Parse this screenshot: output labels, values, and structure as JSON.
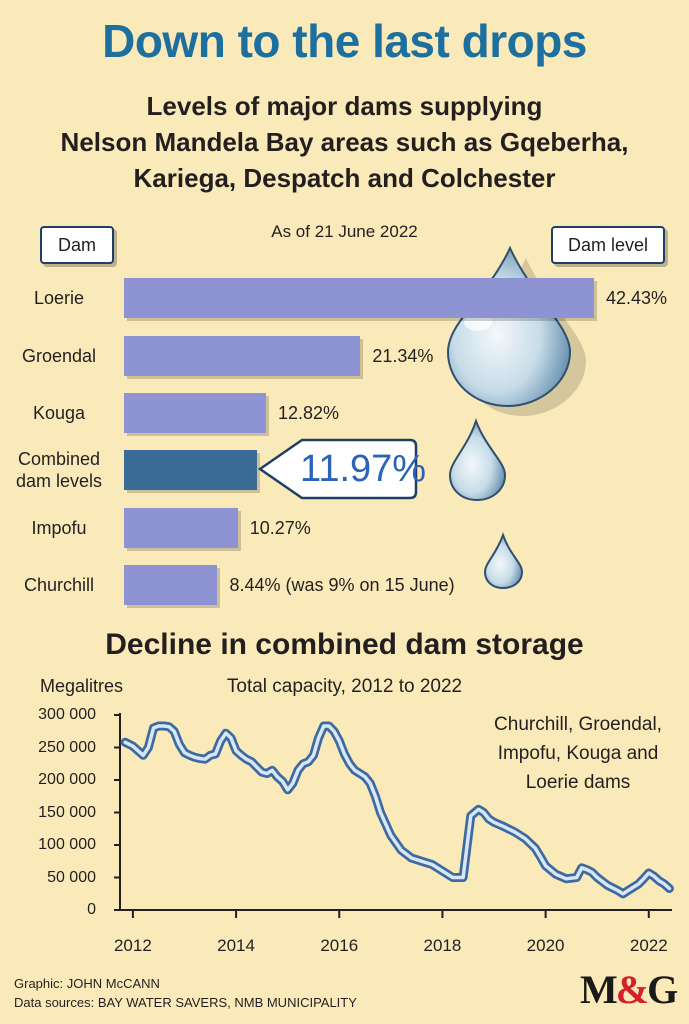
{
  "title": "Down to the last drops",
  "subtitle": "Levels of major dams supplying\nNelson Mandela Bay areas such as Gqeberha,\nKariega, Despatch and Colchester",
  "as_of": "As of 21 June 2022",
  "header_dam": "Dam",
  "header_level": "Dam level",
  "callout_value": "11.97%",
  "chart_data": [
    {
      "type": "bar",
      "orientation": "horizontal",
      "categories": [
        "Loerie",
        "Groendal",
        "Kouga",
        "Combined\ndam levels",
        "Impofu",
        "Churchill"
      ],
      "values": [
        42.43,
        21.34,
        12.82,
        11.97,
        10.27,
        8.44
      ],
      "value_labels": [
        "42.43%",
        "21.34%",
        "12.82%",
        "",
        "10.27%",
        "8.44% (was 9% on 15 June)"
      ],
      "highlight_index": 3,
      "colors": {
        "bar": "#8e93d3",
        "highlight": "#3a6b94"
      }
    },
    {
      "type": "line",
      "title": "Decline in combined dam storage",
      "subtitle": "Total capacity, 2012 to 2022",
      "ylabel": "Megalitres",
      "xlim": [
        2011.75,
        2022.45
      ],
      "ylim": [
        0,
        300000
      ],
      "xticks": [
        "2012",
        "2014",
        "2016",
        "2018",
        "2020",
        "2022"
      ],
      "yticks": [
        "300 000",
        "250 000",
        "200 000",
        "150 000",
        "100 000",
        "50 000",
        "0"
      ],
      "annotation": "Churchill, Groendal,\nImpofu, Kouga and\nLoerie dams",
      "colors": {
        "line_outer": "#3d6aa0",
        "line_inner": "#d9e6f5"
      },
      "x": [
        2011.85,
        2012.0,
        2012.1,
        2012.2,
        2012.3,
        2012.4,
        2012.5,
        2012.6,
        2012.7,
        2012.8,
        2012.9,
        2013.0,
        2013.1,
        2013.2,
        2013.3,
        2013.4,
        2013.5,
        2013.6,
        2013.7,
        2013.8,
        2013.9,
        2014.0,
        2014.1,
        2014.2,
        2014.3,
        2014.4,
        2014.5,
        2014.6,
        2014.7,
        2014.8,
        2014.9,
        2015.0,
        2015.1,
        2015.2,
        2015.3,
        2015.4,
        2015.5,
        2015.6,
        2015.7,
        2015.8,
        2015.9,
        2016.0,
        2016.1,
        2016.2,
        2016.3,
        2016.4,
        2016.5,
        2016.6,
        2016.7,
        2016.8,
        2017.0,
        2017.2,
        2017.4,
        2017.6,
        2017.8,
        2018.0,
        2018.2,
        2018.4,
        2018.55,
        2018.7,
        2018.8,
        2018.9,
        2019.0,
        2019.2,
        2019.4,
        2019.6,
        2019.8,
        2019.9,
        2020.0,
        2020.2,
        2020.4,
        2020.6,
        2020.7,
        2020.8,
        2020.9,
        2021.0,
        2021.2,
        2021.4,
        2021.5,
        2021.6,
        2021.7,
        2021.8,
        2021.9,
        2022.0,
        2022.1,
        2022.2,
        2022.3,
        2022.4
      ],
      "y": [
        258000,
        252000,
        245000,
        238000,
        250000,
        280000,
        283000,
        283000,
        282000,
        275000,
        255000,
        242000,
        238000,
        235000,
        233000,
        232000,
        238000,
        240000,
        260000,
        272000,
        265000,
        245000,
        238000,
        232000,
        228000,
        220000,
        212000,
        210000,
        215000,
        205000,
        198000,
        185000,
        195000,
        215000,
        225000,
        228000,
        238000,
        265000,
        283000,
        283000,
        275000,
        260000,
        240000,
        225000,
        215000,
        210000,
        205000,
        195000,
        175000,
        150000,
        115000,
        92000,
        80000,
        75000,
        70000,
        60000,
        50000,
        50000,
        145000,
        155000,
        150000,
        140000,
        135000,
        128000,
        120000,
        110000,
        95000,
        82000,
        68000,
        55000,
        48000,
        50000,
        65000,
        62000,
        58000,
        50000,
        38000,
        30000,
        25000,
        30000,
        35000,
        40000,
        48000,
        57000,
        52000,
        45000,
        40000,
        33000
      ]
    }
  ]
}
